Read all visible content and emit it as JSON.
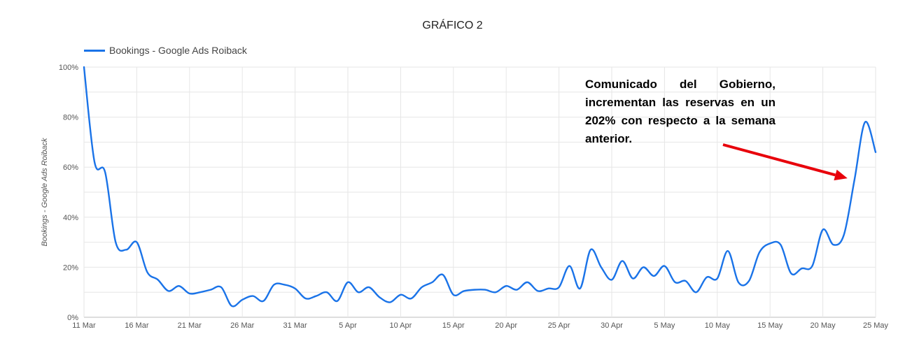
{
  "chart_data": {
    "type": "line",
    "title": "GRÁFICO 2",
    "xlabel": "",
    "ylabel": "Bookings - Google Ads Roiback",
    "legend_position": "top-left",
    "grid": true,
    "x_start": "11 Mar",
    "x_end": "25 May",
    "x_ticks": [
      "11 Mar",
      "16 Mar",
      "21 Mar",
      "26 Mar",
      "31 Mar",
      "5 Apr",
      "10 Apr",
      "15 Apr",
      "20 Apr",
      "25 Apr",
      "30 Apr",
      "5 May",
      "10 May",
      "15 May",
      "20 May",
      "25 May"
    ],
    "y_ticks": [
      "0%",
      "20%",
      "40%",
      "60%",
      "80%",
      "100%"
    ],
    "ylim": [
      0,
      100
    ],
    "series": [
      {
        "name": "Bookings - Google Ads Roiback",
        "color": "#1a73e8",
        "points": [
          {
            "x": "11 Mar",
            "y": 100
          },
          {
            "x": "12 Mar",
            "y": 62
          },
          {
            "x": "13 Mar",
            "y": 58
          },
          {
            "x": "14 Mar",
            "y": 30
          },
          {
            "x": "15 Mar",
            "y": 27
          },
          {
            "x": "16 Mar",
            "y": 30
          },
          {
            "x": "17 Mar",
            "y": 18
          },
          {
            "x": "18 Mar",
            "y": 15
          },
          {
            "x": "19 Mar",
            "y": 10.5
          },
          {
            "x": "20 Mar",
            "y": 12.5
          },
          {
            "x": "21 Mar",
            "y": 9.5
          },
          {
            "x": "22 Mar",
            "y": 10
          },
          {
            "x": "23 Mar",
            "y": 11
          },
          {
            "x": "24 Mar",
            "y": 12
          },
          {
            "x": "25 Mar",
            "y": 4.5
          },
          {
            "x": "26 Mar",
            "y": 7
          },
          {
            "x": "27 Mar",
            "y": 8.5
          },
          {
            "x": "28 Mar",
            "y": 6.5
          },
          {
            "x": "29 Mar",
            "y": 13
          },
          {
            "x": "30 Mar",
            "y": 13
          },
          {
            "x": "31 Mar",
            "y": 11.5
          },
          {
            "x": "1 Apr",
            "y": 7.5
          },
          {
            "x": "2 Apr",
            "y": 8.5
          },
          {
            "x": "3 Apr",
            "y": 10
          },
          {
            "x": "4 Apr",
            "y": 6.5
          },
          {
            "x": "5 Apr",
            "y": 14
          },
          {
            "x": "6 Apr",
            "y": 10
          },
          {
            "x": "7 Apr",
            "y": 12
          },
          {
            "x": "8 Apr",
            "y": 8
          },
          {
            "x": "9 Apr",
            "y": 6
          },
          {
            "x": "10 Apr",
            "y": 9
          },
          {
            "x": "11 Apr",
            "y": 7.5
          },
          {
            "x": "12 Apr",
            "y": 12
          },
          {
            "x": "13 Apr",
            "y": 14
          },
          {
            "x": "14 Apr",
            "y": 17
          },
          {
            "x": "15 Apr",
            "y": 9
          },
          {
            "x": "16 Apr",
            "y": 10.5
          },
          {
            "x": "17 Apr",
            "y": 11
          },
          {
            "x": "18 Apr",
            "y": 11
          },
          {
            "x": "19 Apr",
            "y": 10
          },
          {
            "x": "20 Apr",
            "y": 12.5
          },
          {
            "x": "21 Apr",
            "y": 11
          },
          {
            "x": "22 Apr",
            "y": 14
          },
          {
            "x": "23 Apr",
            "y": 10.5
          },
          {
            "x": "24 Apr",
            "y": 11.5
          },
          {
            "x": "25 Apr",
            "y": 12
          },
          {
            "x": "26 Apr",
            "y": 20.5
          },
          {
            "x": "27 Apr",
            "y": 11.5
          },
          {
            "x": "28 Apr",
            "y": 27
          },
          {
            "x": "29 Apr",
            "y": 20
          },
          {
            "x": "30 Apr",
            "y": 15
          },
          {
            "x": "1 May",
            "y": 22.5
          },
          {
            "x": "2 May",
            "y": 15.5
          },
          {
            "x": "3 May",
            "y": 20
          },
          {
            "x": "4 May",
            "y": 16.5
          },
          {
            "x": "5 May",
            "y": 20.5
          },
          {
            "x": "6 May",
            "y": 14
          },
          {
            "x": "7 May",
            "y": 14.5
          },
          {
            "x": "8 May",
            "y": 10
          },
          {
            "x": "9 May",
            "y": 16
          },
          {
            "x": "10 May",
            "y": 15.5
          },
          {
            "x": "11 May",
            "y": 26.5
          },
          {
            "x": "12 May",
            "y": 14
          },
          {
            "x": "13 May",
            "y": 14.5
          },
          {
            "x": "14 May",
            "y": 26
          },
          {
            "x": "15 May",
            "y": 29.5
          },
          {
            "x": "16 May",
            "y": 29
          },
          {
            "x": "17 May",
            "y": 17.5
          },
          {
            "x": "18 May",
            "y": 19.5
          },
          {
            "x": "19 May",
            "y": 20.5
          },
          {
            "x": "20 May",
            "y": 35
          },
          {
            "x": "21 May",
            "y": 29
          },
          {
            "x": "22 May",
            "y": 33
          },
          {
            "x": "23 May",
            "y": 55
          },
          {
            "x": "24 May",
            "y": 78
          },
          {
            "x": "25 May",
            "y": 66
          }
        ]
      }
    ],
    "annotation": {
      "text": "Comunicado del Gobierno, incrementan las reservas en un 202% con respecto a la semana anterior.",
      "arrow_color": "#e8000b",
      "arrow_target": "23 May"
    }
  }
}
